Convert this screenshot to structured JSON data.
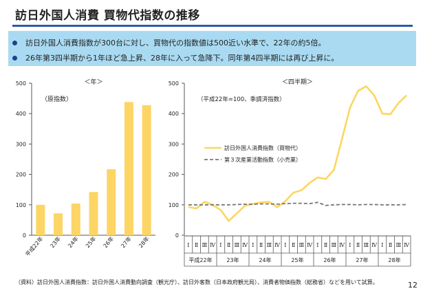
{
  "title": "訪日外国人消費 買物代指数の推移",
  "summary": {
    "bullets": [
      "訪日外国人消費指数が300台に対し、買物代の指数値は500近い水準で、22年の約5倍。",
      "26年第3四半期から1年ほど急上昇、28年に入って急降下。同年第4四半期には再び上昇に。"
    ]
  },
  "footnote": "（資料）訪日外国人消費指数：訪日外国人消費動向調査（観光庁）、訪日外客数（日本政府観光局）、消費者物価指数（総務省）などを用いて試算。",
  "page_number": "12",
  "colors": {
    "bar": "#fcd565",
    "line": "#fbd75e",
    "dash": "#757575",
    "title_rule": "#2b5aa8",
    "summary_bg": "#a9daf2",
    "bullet": "#1f3f8f"
  },
  "chart_data": [
    {
      "type": "bar",
      "unit_label": "＜年＞",
      "note": "（原指数）",
      "categories": [
        "平成22年",
        "23年",
        "24年",
        "25年",
        "26年",
        "27年",
        "28年"
      ],
      "values": [
        100,
        72,
        104,
        142,
        217,
        438,
        428
      ],
      "ylim": [
        0,
        500
      ],
      "yticks": [
        0,
        100,
        200,
        300,
        400,
        500
      ],
      "grid": false
    },
    {
      "type": "line",
      "unit_label": "＜四半期＞",
      "note": "（平成22年=100、季調済指数）",
      "quarter_labels": [
        "Ⅰ",
        "Ⅱ",
        "Ⅲ",
        "Ⅳ",
        "Ⅰ",
        "Ⅱ",
        "Ⅲ",
        "Ⅳ",
        "Ⅰ",
        "Ⅱ",
        "Ⅲ",
        "Ⅳ",
        "Ⅰ",
        "Ⅱ",
        "Ⅲ",
        "Ⅳ",
        "Ⅰ",
        "Ⅱ",
        "Ⅲ",
        "Ⅳ",
        "Ⅰ",
        "Ⅱ",
        "Ⅲ",
        "Ⅳ",
        "Ⅰ",
        "Ⅱ",
        "Ⅲ",
        "Ⅳ"
      ],
      "year_labels": [
        "平成22年",
        "23年",
        "24年",
        "25年",
        "26年",
        "27年",
        "28年"
      ],
      "ylim": [
        0,
        500
      ],
      "yticks": [
        0,
        100,
        200,
        300,
        400,
        500
      ],
      "legend_position": "upper-left",
      "grid": false,
      "series": [
        {
          "name": "訪日外国人消費指数（買物代）",
          "style": "solid",
          "values": [
            93,
            88,
            110,
            100,
            83,
            47,
            72,
            97,
            103,
            108,
            110,
            92,
            112,
            140,
            148,
            172,
            190,
            185,
            215,
            315,
            420,
            475,
            490,
            460,
            400,
            398,
            435,
            460
          ]
        },
        {
          "name": "第３次産業活動指数（小売業）",
          "style": "dashed",
          "values": [
            100,
            100,
            100,
            100,
            100,
            100,
            101,
            102,
            102,
            103,
            103,
            102,
            104,
            105,
            105,
            104,
            108,
            98,
            100,
            101,
            101,
            100,
            101,
            101,
            100,
            100,
            100,
            101
          ]
        }
      ]
    }
  ]
}
